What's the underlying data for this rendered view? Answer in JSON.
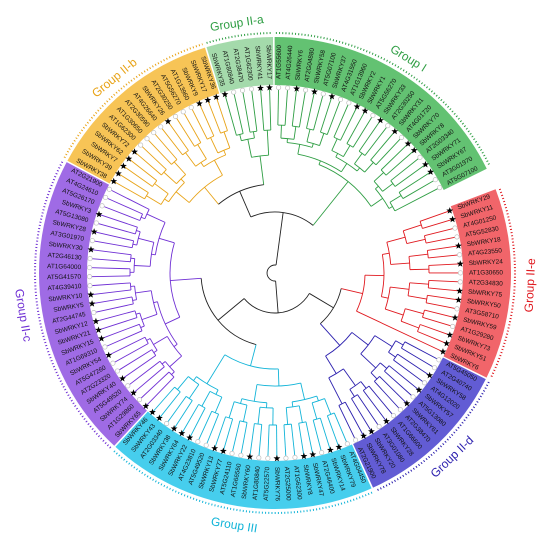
{
  "colors": {
    "group_ia": "#2f9e44",
    "group_i": "#2f9e44",
    "group_iib": "#e8a317",
    "group_iic": "#6f2fd4",
    "group_iii": "#12b4d8",
    "group_iid": "#2b1fae",
    "group_iie": "#e0191f",
    "root": "#222222"
  },
  "groups": [
    {
      "id": "IIe",
      "label": "Group II-e",
      "color": "#e0191f",
      "band": "#f05d62",
      "leaves": [
        {
          "name": "SbWRKY29",
          "sb": true
        },
        {
          "name": "SbWRKY11",
          "sb": true
        },
        {
          "name": "AT4G01250",
          "sb": false
        },
        {
          "name": "AT5G52830",
          "sb": false
        },
        {
          "name": "SbWRKY18",
          "sb": true
        },
        {
          "name": "AT4G23550",
          "sb": false
        },
        {
          "name": "SbWRKY24",
          "sb": true
        },
        {
          "name": "AT1G30650",
          "sb": false
        },
        {
          "name": "AT2G34830",
          "sb": false
        },
        {
          "name": "SbWRKY75",
          "sb": true
        },
        {
          "name": "SbWRKY50",
          "sb": true
        },
        {
          "name": "AT3G58710",
          "sb": false
        },
        {
          "name": "SbWRKY59",
          "sb": true
        },
        {
          "name": "AT1G29280",
          "sb": false
        },
        {
          "name": "SbWRKY73",
          "sb": true
        },
        {
          "name": "SbWRKY51",
          "sb": true
        },
        {
          "name": "SbWRKY6",
          "sb": true
        }
      ]
    },
    {
      "id": "IId",
      "label": "Group II-d",
      "color": "#2b1fae",
      "band": "#5a53d2",
      "leaves": [
        {
          "name": "AT5G45050",
          "sb": false
        },
        {
          "name": "AT2G40740",
          "sb": false
        },
        {
          "name": "SbWRKY58",
          "sb": true
        },
        {
          "name": "AT4G12020",
          "sb": false
        },
        {
          "name": "SbWRKY57",
          "sb": true
        },
        {
          "name": "AT5G13080",
          "sb": false
        },
        {
          "name": "SbWRKY61",
          "sb": true
        },
        {
          "name": "AT2G38470",
          "sb": false
        },
        {
          "name": "AT1G66600",
          "sb": false
        },
        {
          "name": "SbWRKY28",
          "sb": true
        },
        {
          "name": "AT3G01080",
          "sb": false
        },
        {
          "name": "SbWRKY20",
          "sb": true
        },
        {
          "name": "SbWRKY78",
          "sb": true
        },
        {
          "name": "AT2G21900",
          "sb": false
        }
      ]
    },
    {
      "id": "III",
      "label": "Group III",
      "color": "#12b4d8",
      "band": "#3ccbec",
      "leaves": [
        {
          "name": "AT4G04450",
          "sb": false
        },
        {
          "name": "SbWRKY79",
          "sb": true
        },
        {
          "name": "SbWRKY14",
          "sb": true
        },
        {
          "name": "AT2G46400",
          "sb": false
        },
        {
          "name": "SbWRKY47",
          "sb": true
        },
        {
          "name": "SbWRKY8",
          "sb": true
        },
        {
          "name": "AT1G62300",
          "sb": false
        },
        {
          "name": "AT2G25000",
          "sb": false
        },
        {
          "name": "SbWRKY76",
          "sb": true
        },
        {
          "name": "AT5G22570",
          "sb": false
        },
        {
          "name": "AT1G80840",
          "sb": false
        },
        {
          "name": "SbWRKY60",
          "sb": true
        },
        {
          "name": "AT1G66560",
          "sb": false
        },
        {
          "name": "AT5G24110",
          "sb": false
        },
        {
          "name": "SbWRKY77",
          "sb": true
        },
        {
          "name": "SbWRKY13",
          "sb": true
        },
        {
          "name": "AT5G49520",
          "sb": false
        },
        {
          "name": "AT4G23810",
          "sb": false
        },
        {
          "name": "SbWRKY22",
          "sb": true
        },
        {
          "name": "SbWRKY64",
          "sb": true
        },
        {
          "name": "SbWRKY38",
          "sb": true
        },
        {
          "name": "AT2G03340",
          "sb": false
        },
        {
          "name": "SbWRKY43",
          "sb": true
        },
        {
          "name": "SbWRKY46",
          "sb": true
        }
      ]
    },
    {
      "id": "IIc",
      "label": "Group II-c",
      "color": "#6f2fd4",
      "band": "#9a63e4",
      "leaves": [
        {
          "name": "SbWRKY65",
          "sb": true
        },
        {
          "name": "AT1G29860",
          "sb": false
        },
        {
          "name": "SbWRKY74",
          "sb": true
        },
        {
          "name": "AT5G49520",
          "sb": false
        },
        {
          "name": "SbWRKY40",
          "sb": true
        },
        {
          "name": "AT2G23320",
          "sb": false
        },
        {
          "name": "AT5G47260",
          "sb": false
        },
        {
          "name": "SbWRKY54",
          "sb": true
        },
        {
          "name": "AT1G69310",
          "sb": false
        },
        {
          "name": "SbWRKY15",
          "sb": true
        },
        {
          "name": "SbWRKY21",
          "sb": true
        },
        {
          "name": "SbWRKY12",
          "sb": true
        },
        {
          "name": "AT2G44745",
          "sb": false
        },
        {
          "name": "SbWRKY5",
          "sb": true
        },
        {
          "name": "SbWRKY10",
          "sb": true
        },
        {
          "name": "AT4G39410",
          "sb": false
        },
        {
          "name": "AT5G41570",
          "sb": false
        },
        {
          "name": "AT1G64000",
          "sb": false
        },
        {
          "name": "AT2G46130",
          "sb": false
        },
        {
          "name": "SbWRKY30",
          "sb": true
        },
        {
          "name": "AT3G01970",
          "sb": false
        },
        {
          "name": "SbWRKY28",
          "sb": true
        },
        {
          "name": "AT5G13080",
          "sb": false
        },
        {
          "name": "SbWRKY3",
          "sb": true
        },
        {
          "name": "AT5G26170",
          "sb": false
        },
        {
          "name": "AT4G24610",
          "sb": false
        },
        {
          "name": "AT2G21900",
          "sb": false
        }
      ]
    },
    {
      "id": "IIb",
      "label": "Group II-b",
      "color": "#e8a317",
      "band": "#f7c14d",
      "leaves": [
        {
          "name": "SbWRKY38",
          "sb": true
        },
        {
          "name": "SbWRKY39",
          "sb": true
        },
        {
          "name": "SbWRKY7",
          "sb": true
        },
        {
          "name": "SbWRKY62",
          "sb": true
        },
        {
          "name": "SbWRKY72",
          "sb": true
        },
        {
          "name": "AT1G62300",
          "sb": false
        },
        {
          "name": "AT1G30650",
          "sb": false
        },
        {
          "name": "AT2G30590",
          "sb": false
        },
        {
          "name": "AT4G26640",
          "sb": false
        },
        {
          "name": "SbWRKY26",
          "sb": true
        },
        {
          "name": "AT2G30250",
          "sb": false
        },
        {
          "name": "AT5G56270",
          "sb": false
        },
        {
          "name": "AT1G13960",
          "sb": false
        },
        {
          "name": "SbWRKY9",
          "sb": true
        },
        {
          "name": "SbWRKY17",
          "sb": true
        },
        {
          "name": "SbWRKY36",
          "sb": true
        }
      ]
    },
    {
      "id": "IIa",
      "label": "Group II-a",
      "color": "#2f9e44",
      "band": "#9fd8a6",
      "leaves": [
        {
          "name": "SbWRKY35",
          "sb": true
        },
        {
          "name": "AT1G80840",
          "sb": false
        },
        {
          "name": "AT2G38470",
          "sb": false
        },
        {
          "name": "AT1G62300",
          "sb": false
        },
        {
          "name": "SbWRKY41",
          "sb": true
        },
        {
          "name": "SbWRKY17",
          "sb": true
        }
      ]
    },
    {
      "id": "I",
      "label": "Group I",
      "color": "#2f9e44",
      "band": "#5bbf6a",
      "leaves": [
        {
          "name": "AT1G55600",
          "sb": false
        },
        {
          "name": "AT4G26440",
          "sb": false
        },
        {
          "name": "SbWRKY6",
          "sb": true
        },
        {
          "name": "AT2G04880",
          "sb": false
        },
        {
          "name": "SbWRKY58",
          "sb": true
        },
        {
          "name": "AT5G07100",
          "sb": false
        },
        {
          "name": "SbWRKY37",
          "sb": true
        },
        {
          "name": "AT4G31550",
          "sb": false
        },
        {
          "name": "AT1G13960",
          "sb": false
        },
        {
          "name": "SbWRKY2",
          "sb": true
        },
        {
          "name": "SbWRKY1",
          "sb": true
        },
        {
          "name": "AT5G56270",
          "sb": false
        },
        {
          "name": "SbWRKY33",
          "sb": true
        },
        {
          "name": "AT2G30250",
          "sb": false
        },
        {
          "name": "SbWRKY31",
          "sb": true
        },
        {
          "name": "AT4G01720",
          "sb": false
        },
        {
          "name": "SbWRKY70",
          "sb": true
        },
        {
          "name": "SbWRKY8",
          "sb": true
        },
        {
          "name": "AT2G03340",
          "sb": false
        },
        {
          "name": "SbWRKY71",
          "sb": true
        },
        {
          "name": "SbWRKY67",
          "sb": true
        },
        {
          "name": "AT3G01970",
          "sb": false
        },
        {
          "name": "AT5G07100",
          "sb": false
        }
      ]
    }
  ]
}
